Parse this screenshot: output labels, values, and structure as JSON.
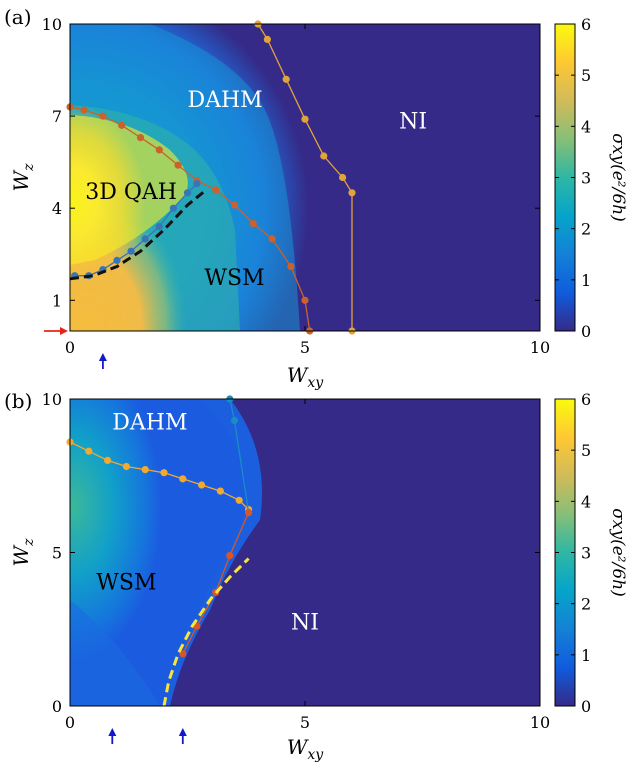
{
  "chart_data": [
    {
      "type": "heatmap",
      "panel_label": "(a)",
      "xlabel": "W",
      "xlabel_sub": "xy",
      "ylabel": "W",
      "ylabel_sub": "z",
      "xlim": [
        0,
        10
      ],
      "ylim": [
        0,
        10
      ],
      "x_ticks": [
        0,
        5,
        10
      ],
      "y_ticks": [
        1,
        4,
        7,
        10
      ],
      "colorbar": {
        "label": "σxy(e²/6h)",
        "range": [
          0,
          6
        ],
        "ticks": [
          0,
          1,
          2,
          3,
          4,
          5,
          6
        ],
        "colormap": [
          "#352a87",
          "#0f5cdd",
          "#1481d6",
          "#06a4ca",
          "#2eb7a4",
          "#87bf77",
          "#d1bb59",
          "#fec832",
          "#f9fb0e"
        ]
      },
      "regions": [
        {
          "name": "3D QAH",
          "color": "black",
          "x": 1.3,
          "y": 4.3
        },
        {
          "name": "DAHM",
          "color": "white",
          "x": 3.3,
          "y": 7.3
        },
        {
          "name": "WSM",
          "color": "black",
          "x": 3.5,
          "y": 1.5
        },
        {
          "name": "NI",
          "color": "white",
          "x": 7.3,
          "y": 6.6
        }
      ],
      "series": [
        {
          "color": "#c9622c",
          "x": [
            0,
            0.3,
            0.7,
            1.1,
            1.5,
            1.9,
            2.3,
            2.7,
            3.1,
            3.5,
            3.9,
            4.3,
            4.7,
            5.0,
            5.1
          ],
          "y": [
            7.3,
            7.2,
            7.0,
            6.7,
            6.3,
            5.9,
            5.4,
            4.9,
            4.6,
            4.1,
            3.5,
            3.0,
            2.1,
            1.0,
            0
          ]
        },
        {
          "color": "#e2a33a",
          "x": [
            4.0,
            4.2,
            4.6,
            5.0,
            5.4,
            5.8,
            6.0,
            6.0
          ],
          "y": [
            10.0,
            9.5,
            8.2,
            6.9,
            5.7,
            5.0,
            4.5,
            0
          ]
        },
        {
          "color": "#3875b6",
          "x": [
            0.1,
            0.4,
            0.7,
            1.0,
            1.3,
            1.6,
            1.9,
            2.2,
            2.5,
            2.7
          ],
          "y": [
            1.8,
            1.8,
            2.0,
            2.3,
            2.6,
            3.0,
            3.4,
            4.0,
            4.5,
            4.8
          ]
        },
        {
          "color": "#111111",
          "dashed": true,
          "x": [
            0,
            0.5,
            1.0,
            1.5,
            2.0,
            2.5,
            2.9
          ],
          "y": [
            1.7,
            1.8,
            2.1,
            2.6,
            3.3,
            4.1,
            4.6
          ]
        }
      ],
      "arrows": [
        {
          "color": "#e8231a",
          "axis": "y",
          "value": 0
        },
        {
          "color": "#1418c8",
          "axis": "x",
          "value": 0.7
        }
      ]
    },
    {
      "type": "heatmap",
      "panel_label": "(b)",
      "xlabel": "W",
      "xlabel_sub": "xy",
      "ylabel": "W",
      "ylabel_sub": "z",
      "xlim": [
        0,
        10
      ],
      "ylim": [
        0,
        10
      ],
      "x_ticks": [
        0,
        5,
        10
      ],
      "y_ticks": [
        0,
        5,
        10
      ],
      "colorbar": {
        "label": "σxy(e²/6h)",
        "range": [
          0,
          6
        ],
        "ticks": [
          0,
          1,
          2,
          3,
          4,
          5,
          6
        ],
        "colormap": [
          "#352a87",
          "#0f5cdd",
          "#1481d6",
          "#06a4ca",
          "#2eb7a4",
          "#87bf77",
          "#d1bb59",
          "#fec832",
          "#f9fb0e"
        ]
      },
      "regions": [
        {
          "name": "DAHM",
          "color": "white",
          "x": 1.7,
          "y": 9.0
        },
        {
          "name": "WSM",
          "color": "black",
          "x": 1.2,
          "y": 3.8
        },
        {
          "name": "NI",
          "color": "white",
          "x": 5.0,
          "y": 2.5
        }
      ],
      "series": [
        {
          "color": "#f2a930",
          "x": [
            0,
            0.4,
            0.8,
            1.2,
            1.6,
            2.0,
            2.4,
            2.8,
            3.2,
            3.6,
            3.8
          ],
          "y": [
            8.6,
            8.3,
            8.0,
            7.8,
            7.7,
            7.6,
            7.4,
            7.2,
            7.0,
            6.7,
            6.4
          ]
        },
        {
          "color": "#1a8cc4",
          "x": [
            3.4,
            3.5,
            3.8
          ],
          "y": [
            10.0,
            9.3,
            6.3
          ]
        },
        {
          "color": "#d9552a",
          "x": [
            3.8,
            3.4,
            3.1,
            2.7,
            2.4
          ],
          "y": [
            6.3,
            4.9,
            3.7,
            2.6,
            1.7
          ]
        },
        {
          "color": "#f6e53a",
          "dashed": true,
          "x": [
            2.0,
            2.1,
            2.3,
            2.6,
            3.0,
            3.4,
            3.8
          ],
          "y": [
            0,
            0.8,
            1.7,
            2.6,
            3.5,
            4.2,
            4.8
          ]
        }
      ],
      "arrows": [
        {
          "color": "#1418c8",
          "axis": "x",
          "value": 0.9
        },
        {
          "color": "#1418c8",
          "axis": "x",
          "value": 2.4
        }
      ]
    }
  ]
}
